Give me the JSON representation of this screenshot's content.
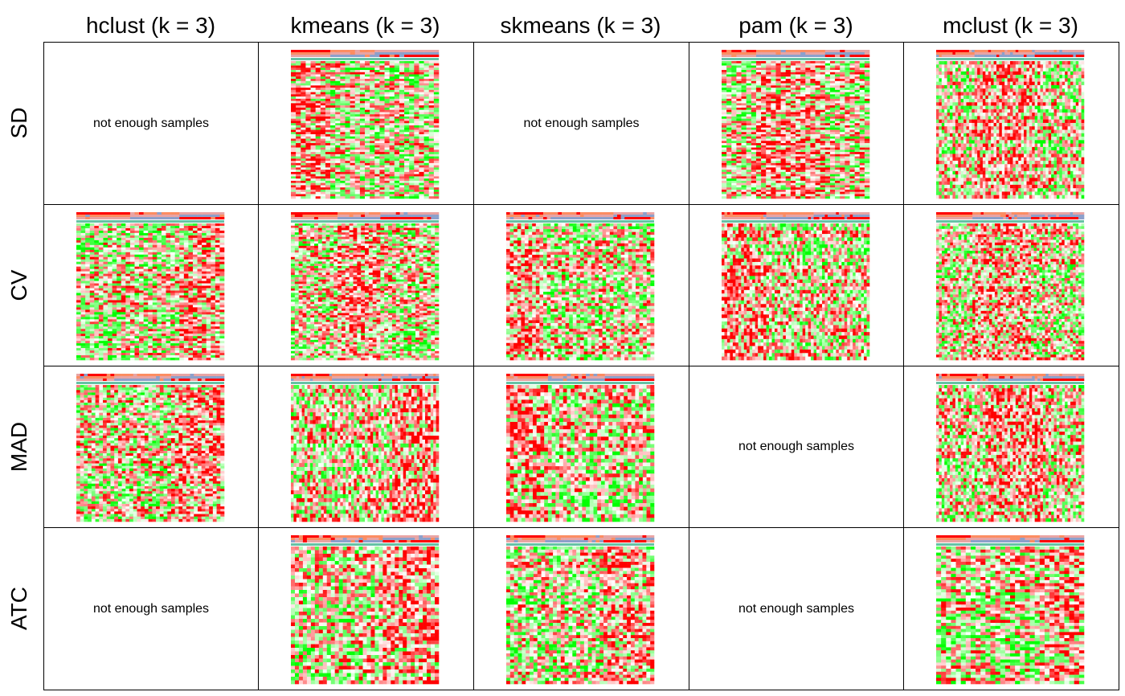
{
  "columns": [
    "hclust (k = 3)",
    "kmeans (k = 3)",
    "skmeans (k = 3)",
    "pam (k = 3)",
    "mclust (k = 3)"
  ],
  "rows": [
    "SD",
    "CV",
    "MAD",
    "ATC"
  ],
  "missing_text": "not enough samples",
  "colors": {
    "low": "#00ff00",
    "mid": "#ffffff",
    "high": "#ff0000",
    "class_1": "#ff0000",
    "class_2": "#fc8d62",
    "class_3": "#e8a4a4",
    "annotation_bar": "#66c2a5",
    "class_blue": "#8da0cb"
  },
  "chart_data": {
    "type": "heatmap",
    "grid": [
      [
        false,
        true,
        false,
        true,
        true
      ],
      [
        true,
        true,
        true,
        true,
        true
      ],
      [
        true,
        true,
        true,
        false,
        true
      ],
      [
        false,
        true,
        true,
        false,
        true
      ]
    ]
  }
}
